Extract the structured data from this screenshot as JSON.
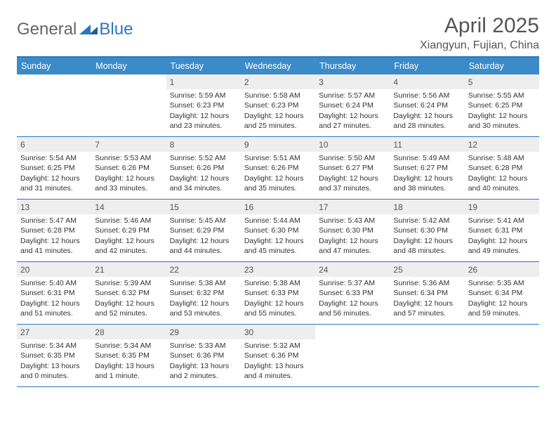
{
  "logo": {
    "general": "General",
    "blue": "Blue"
  },
  "title": "April 2025",
  "location": "Xiangyun, Fujian, China",
  "colors": {
    "header_bg": "#3b8bc9",
    "border": "#2a78bf",
    "daynum_bg": "#eeeeee",
    "text": "#333333"
  },
  "weekdays": [
    "Sunday",
    "Monday",
    "Tuesday",
    "Wednesday",
    "Thursday",
    "Friday",
    "Saturday"
  ],
  "weeks": [
    [
      null,
      null,
      {
        "n": "1",
        "sr": "Sunrise: 5:59 AM",
        "ss": "Sunset: 6:23 PM",
        "dl": "Daylight: 12 hours and 23 minutes."
      },
      {
        "n": "2",
        "sr": "Sunrise: 5:58 AM",
        "ss": "Sunset: 6:23 PM",
        "dl": "Daylight: 12 hours and 25 minutes."
      },
      {
        "n": "3",
        "sr": "Sunrise: 5:57 AM",
        "ss": "Sunset: 6:24 PM",
        "dl": "Daylight: 12 hours and 27 minutes."
      },
      {
        "n": "4",
        "sr": "Sunrise: 5:56 AM",
        "ss": "Sunset: 6:24 PM",
        "dl": "Daylight: 12 hours and 28 minutes."
      },
      {
        "n": "5",
        "sr": "Sunrise: 5:55 AM",
        "ss": "Sunset: 6:25 PM",
        "dl": "Daylight: 12 hours and 30 minutes."
      }
    ],
    [
      {
        "n": "6",
        "sr": "Sunrise: 5:54 AM",
        "ss": "Sunset: 6:25 PM",
        "dl": "Daylight: 12 hours and 31 minutes."
      },
      {
        "n": "7",
        "sr": "Sunrise: 5:53 AM",
        "ss": "Sunset: 6:26 PM",
        "dl": "Daylight: 12 hours and 33 minutes."
      },
      {
        "n": "8",
        "sr": "Sunrise: 5:52 AM",
        "ss": "Sunset: 6:26 PM",
        "dl": "Daylight: 12 hours and 34 minutes."
      },
      {
        "n": "9",
        "sr": "Sunrise: 5:51 AM",
        "ss": "Sunset: 6:26 PM",
        "dl": "Daylight: 12 hours and 35 minutes."
      },
      {
        "n": "10",
        "sr": "Sunrise: 5:50 AM",
        "ss": "Sunset: 6:27 PM",
        "dl": "Daylight: 12 hours and 37 minutes."
      },
      {
        "n": "11",
        "sr": "Sunrise: 5:49 AM",
        "ss": "Sunset: 6:27 PM",
        "dl": "Daylight: 12 hours and 38 minutes."
      },
      {
        "n": "12",
        "sr": "Sunrise: 5:48 AM",
        "ss": "Sunset: 6:28 PM",
        "dl": "Daylight: 12 hours and 40 minutes."
      }
    ],
    [
      {
        "n": "13",
        "sr": "Sunrise: 5:47 AM",
        "ss": "Sunset: 6:28 PM",
        "dl": "Daylight: 12 hours and 41 minutes."
      },
      {
        "n": "14",
        "sr": "Sunrise: 5:46 AM",
        "ss": "Sunset: 6:29 PM",
        "dl": "Daylight: 12 hours and 42 minutes."
      },
      {
        "n": "15",
        "sr": "Sunrise: 5:45 AM",
        "ss": "Sunset: 6:29 PM",
        "dl": "Daylight: 12 hours and 44 minutes."
      },
      {
        "n": "16",
        "sr": "Sunrise: 5:44 AM",
        "ss": "Sunset: 6:30 PM",
        "dl": "Daylight: 12 hours and 45 minutes."
      },
      {
        "n": "17",
        "sr": "Sunrise: 5:43 AM",
        "ss": "Sunset: 6:30 PM",
        "dl": "Daylight: 12 hours and 47 minutes."
      },
      {
        "n": "18",
        "sr": "Sunrise: 5:42 AM",
        "ss": "Sunset: 6:30 PM",
        "dl": "Daylight: 12 hours and 48 minutes."
      },
      {
        "n": "19",
        "sr": "Sunrise: 5:41 AM",
        "ss": "Sunset: 6:31 PM",
        "dl": "Daylight: 12 hours and 49 minutes."
      }
    ],
    [
      {
        "n": "20",
        "sr": "Sunrise: 5:40 AM",
        "ss": "Sunset: 6:31 PM",
        "dl": "Daylight: 12 hours and 51 minutes."
      },
      {
        "n": "21",
        "sr": "Sunrise: 5:39 AM",
        "ss": "Sunset: 6:32 PM",
        "dl": "Daylight: 12 hours and 52 minutes."
      },
      {
        "n": "22",
        "sr": "Sunrise: 5:38 AM",
        "ss": "Sunset: 6:32 PM",
        "dl": "Daylight: 12 hours and 53 minutes."
      },
      {
        "n": "23",
        "sr": "Sunrise: 5:38 AM",
        "ss": "Sunset: 6:33 PM",
        "dl": "Daylight: 12 hours and 55 minutes."
      },
      {
        "n": "24",
        "sr": "Sunrise: 5:37 AM",
        "ss": "Sunset: 6:33 PM",
        "dl": "Daylight: 12 hours and 56 minutes."
      },
      {
        "n": "25",
        "sr": "Sunrise: 5:36 AM",
        "ss": "Sunset: 6:34 PM",
        "dl": "Daylight: 12 hours and 57 minutes."
      },
      {
        "n": "26",
        "sr": "Sunrise: 5:35 AM",
        "ss": "Sunset: 6:34 PM",
        "dl": "Daylight: 12 hours and 59 minutes."
      }
    ],
    [
      {
        "n": "27",
        "sr": "Sunrise: 5:34 AM",
        "ss": "Sunset: 6:35 PM",
        "dl": "Daylight: 13 hours and 0 minutes."
      },
      {
        "n": "28",
        "sr": "Sunrise: 5:34 AM",
        "ss": "Sunset: 6:35 PM",
        "dl": "Daylight: 13 hours and 1 minute."
      },
      {
        "n": "29",
        "sr": "Sunrise: 5:33 AM",
        "ss": "Sunset: 6:36 PM",
        "dl": "Daylight: 13 hours and 2 minutes."
      },
      {
        "n": "30",
        "sr": "Sunrise: 5:32 AM",
        "ss": "Sunset: 6:36 PM",
        "dl": "Daylight: 13 hours and 4 minutes."
      },
      null,
      null,
      null
    ]
  ]
}
